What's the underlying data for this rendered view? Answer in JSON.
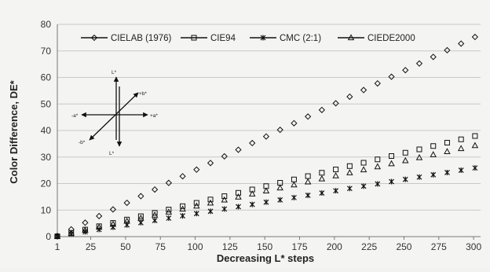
{
  "chart_data": {
    "type": "scatter",
    "xlabel": "Decreasing L* steps",
    "ylabel": "Color Difference, DE*",
    "xlim": [
      1,
      305
    ],
    "ylim": [
      0,
      80
    ],
    "x_ticks": [
      1,
      25,
      50,
      75,
      100,
      125,
      150,
      175,
      200,
      225,
      250,
      275,
      300
    ],
    "y_ticks": [
      0,
      10,
      20,
      30,
      40,
      50,
      60,
      70,
      80
    ],
    "grid": "horizontal",
    "legend_position": "top",
    "series": [
      {
        "name": "CIELAB (1976)",
        "marker": "diamond",
        "slope": 0.25,
        "x_start": 1,
        "x_end": 301,
        "x_step": 10
      },
      {
        "name": "CIE94",
        "marker": "square",
        "slope": 0.126,
        "x_start": 1,
        "x_end": 301,
        "x_step": 10
      },
      {
        "name": "CMC (2:1)",
        "marker": "asterisk",
        "slope": 0.086,
        "x_start": 1,
        "x_end": 301,
        "x_step": 10
      },
      {
        "name": "CIEDE2000",
        "marker": "triangle",
        "slope": 0.114,
        "x_start": 1,
        "x_end": 301,
        "x_step": 10
      }
    ]
  },
  "inset": {
    "l_top": "L*",
    "l_bottom": "L*",
    "pos_a": "+a*",
    "neg_a": "-a*",
    "pos_b": "+b*",
    "neg_b": "-b*"
  },
  "colors": {
    "marker": "#111111",
    "gridline": "#c8c8c8",
    "axis": "#777777"
  }
}
